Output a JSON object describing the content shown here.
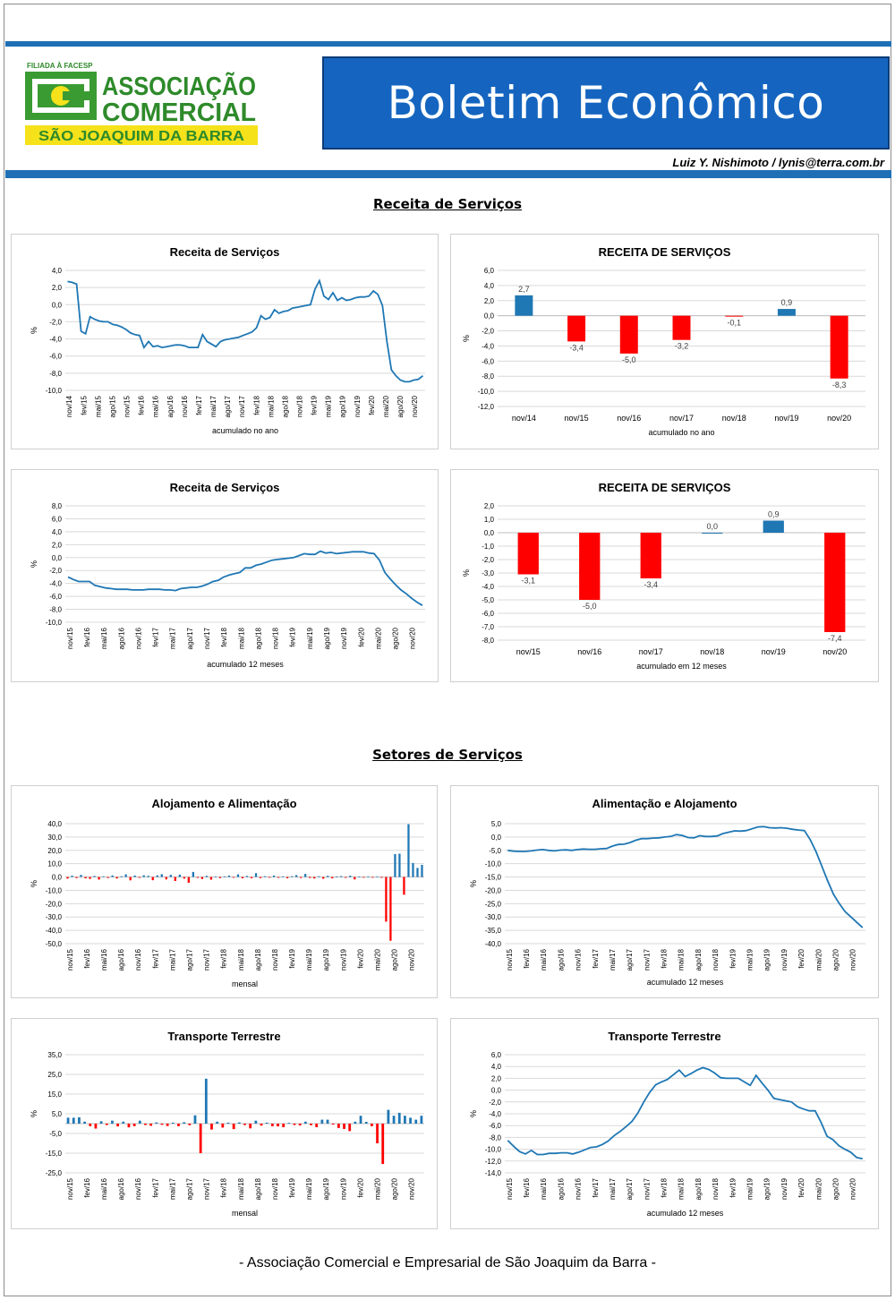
{
  "header": {
    "logo_tag": "FILIADA À FACESP",
    "logo_line1": "ASSOCIAÇÃO",
    "logo_line2": "COMERCIAL",
    "logo_line3": "SÃO JOAQUIM DA BARRA",
    "title": "Boletim Econômico",
    "author": "Luiz Y. Nishimoto / lynis@terra.com.br",
    "colors": {
      "brand_blue": "#1565c0",
      "logo_green": "#3a9b33",
      "logo_yellow": "#f5e21b"
    }
  },
  "sections": {
    "receita": "Receita de Serviços",
    "setores": "Setores de Serviços"
  },
  "footer": "- Associação Comercial e Empresarial de São Joaquim da Barra -",
  "chart_data": [
    {
      "id": "c1",
      "type": "line",
      "title": "Receita de Serviços",
      "xlabel": "acumulado no ano",
      "ylabel": "%",
      "ylim": [
        -10,
        4
      ],
      "yticks": [
        4,
        2,
        0,
        -2,
        -4,
        -6,
        -8,
        -10
      ],
      "x_labels": [
        "nov/14",
        "fev/15",
        "mai/15",
        "ago/15",
        "nov/15",
        "fev/16",
        "mai/16",
        "ago/16",
        "nov/16",
        "fev/17",
        "mai/17",
        "ago/17",
        "nov/17",
        "fev/18",
        "mai/18",
        "ago/18",
        "nov/18",
        "fev/19",
        "mai/19",
        "ago/19",
        "nov/19",
        "fev/20",
        "mai/20",
        "ago/20",
        "nov/20"
      ],
      "line_color": "#1f77b4",
      "values": [
        2.7,
        2.6,
        2.4,
        -3.1,
        -3.4,
        -1.4,
        -1.7,
        -1.9,
        -2.0,
        -2.0,
        -2.3,
        -2.4,
        -2.6,
        -2.9,
        -3.3,
        -3.5,
        -3.6,
        -5.0,
        -4.3,
        -4.9,
        -4.8,
        -5.0,
        -4.9,
        -4.8,
        -4.7,
        -4.7,
        -4.8,
        -5.0,
        -5.0,
        -5.0,
        -3.5,
        -4.3,
        -4.6,
        -4.9,
        -4.3,
        -4.1,
        -4.0,
        -3.9,
        -3.8,
        -3.6,
        -3.4,
        -3.2,
        -2.7,
        -1.3,
        -1.7,
        -1.5,
        -0.6,
        -1.0,
        -0.8,
        -0.7,
        -0.4,
        -0.3,
        -0.2,
        -0.1,
        0.0,
        1.8,
        2.8,
        1.0,
        0.6,
        1.4,
        0.5,
        0.8,
        0.5,
        0.6,
        0.8,
        0.9,
        0.9,
        1.0,
        1.6,
        1.2,
        -0.1,
        -4.3,
        -7.6,
        -8.3,
        -8.8,
        -9.0,
        -9.0,
        -8.8,
        -8.7,
        -8.3
      ]
    },
    {
      "id": "c2",
      "type": "bar",
      "title": "RECEITA DE SERVIÇOS",
      "xlabel": "acumulado no ano",
      "ylabel": "%",
      "ylim": [
        -12,
        6
      ],
      "yticks": [
        6,
        4,
        2,
        0,
        -2,
        -4,
        -6,
        -8,
        -10,
        -12
      ],
      "categories": [
        "nov/14",
        "nov/15",
        "nov/16",
        "nov/17",
        "nov/18",
        "nov/19",
        "nov/20"
      ],
      "values": [
        2.7,
        -3.4,
        -5.0,
        -3.2,
        -0.1,
        0.9,
        -8.3
      ],
      "data_labels": [
        "2,7",
        "-3,4",
        "-5,0",
        "-3,2",
        "-0,1",
        "0,9",
        "-8,3"
      ],
      "pos_color": "#1f77b4",
      "neg_color": "#ff0000"
    },
    {
      "id": "c3",
      "type": "line",
      "title": "Receita de Serviços",
      "xlabel": "acumulado 12 meses",
      "ylabel": "%",
      "ylim": [
        -10,
        8
      ],
      "yticks": [
        8,
        6,
        4,
        2,
        0,
        -2,
        -4,
        -6,
        -8,
        -10
      ],
      "x_labels": [
        "nov/15",
        "fev/16",
        "mai/16",
        "ago/16",
        "nov/16",
        "fev/17",
        "mai/17",
        "ago/17",
        "nov/17",
        "fev/18",
        "mai/18",
        "ago/18",
        "nov/18",
        "fev/19",
        "mai/19",
        "ago/19",
        "nov/19",
        "fev/20",
        "mai/20",
        "ago/20",
        "nov/20"
      ],
      "line_color": "#1f77b4",
      "values": [
        -3.0,
        -3.4,
        -3.7,
        -3.7,
        -3.7,
        -4.3,
        -4.5,
        -4.7,
        -4.8,
        -4.9,
        -4.9,
        -4.9,
        -5.0,
        -5.0,
        -5.0,
        -4.9,
        -4.9,
        -4.9,
        -5.0,
        -5.0,
        -5.1,
        -4.8,
        -4.7,
        -4.6,
        -4.6,
        -4.4,
        -4.1,
        -3.7,
        -3.5,
        -3.0,
        -2.7,
        -2.5,
        -2.3,
        -1.6,
        -1.6,
        -1.2,
        -1.0,
        -0.7,
        -0.4,
        -0.3,
        -0.2,
        -0.1,
        0.0,
        0.3,
        0.6,
        0.5,
        0.5,
        1.0,
        0.7,
        0.8,
        0.6,
        0.7,
        0.8,
        0.9,
        0.9,
        0.9,
        0.7,
        0.6,
        -0.4,
        -2.3,
        -3.3,
        -4.2,
        -5.0,
        -5.6,
        -6.3,
        -6.9,
        -7.4
      ]
    },
    {
      "id": "c4",
      "type": "bar",
      "title": "RECEITA DE SERVIÇOS",
      "xlabel": "acumulado em 12 meses",
      "ylabel": "%",
      "ylim": [
        -8,
        2
      ],
      "yticks": [
        2,
        1,
        0,
        -1,
        -2,
        -3,
        -4,
        -5,
        -6,
        -7,
        -8
      ],
      "categories": [
        "nov/15",
        "nov/16",
        "nov/17",
        "nov/18",
        "nov/19",
        "nov/20"
      ],
      "values": [
        -3.1,
        -5.0,
        -3.4,
        0.0,
        0.9,
        -7.4
      ],
      "data_labels": [
        "-3,1",
        "-5,0",
        "-3,4",
        "0,0",
        "0,9",
        "-7,4"
      ],
      "pos_color": "#1f77b4",
      "neg_color": "#ff0000"
    },
    {
      "id": "c5",
      "type": "bar",
      "title": "Alojamento e Alimentação",
      "xlabel": "mensal",
      "ylabel": "%",
      "ylim": [
        -50,
        40
      ],
      "yticks": [
        40,
        30,
        20,
        10,
        0,
        -10,
        -20,
        -30,
        -40,
        -50
      ],
      "x_labels": [
        "nov/15",
        "fev/16",
        "mai/16",
        "ago/16",
        "nov/16",
        "fev/17",
        "mai/17",
        "ago/17",
        "nov/17",
        "fev/18",
        "mai/18",
        "ago/18",
        "nov/18",
        "fev/19",
        "mai/19",
        "ago/19",
        "nov/19",
        "fev/20",
        "mai/20",
        "ago/20",
        "nov/20"
      ],
      "pos_color": "#1f77b4",
      "neg_color": "#ff0000",
      "values": [
        -1.2,
        1.0,
        -0.8,
        1.6,
        -1.0,
        -1.4,
        0.8,
        -1.9,
        0.5,
        -0.7,
        1.2,
        -1.1,
        0.6,
        2.0,
        -2.5,
        1.1,
        -0.6,
        1.3,
        0.9,
        -2.4,
        1.2,
        2.1,
        -1.8,
        1.6,
        -3.0,
        1.8,
        -1.2,
        -4.3,
        3.8,
        -0.6,
        -1.5,
        0.9,
        -2.0,
        0.4,
        -0.8,
        0.5,
        1.1,
        -0.3,
        2.0,
        -1.0,
        0.8,
        -0.9,
        2.9,
        -0.8,
        0.6,
        -0.4,
        1.1,
        -0.6,
        0.5,
        -0.9,
        0.6,
        1.4,
        -0.7,
        2.3,
        -0.7,
        -1.1,
        0.6,
        -1.3,
        0.9,
        -1.0,
        0.4,
        0.7,
        -0.6,
        1.0,
        -1.8,
        0.3,
        -0.4,
        0.5,
        -0.3,
        0.4,
        -0.6,
        -33.5,
        -47.8,
        17.2,
        17.5,
        -13.3,
        39.6,
        10.5,
        6.8,
        9.1
      ]
    },
    {
      "id": "c6",
      "type": "line",
      "title": "Alimentação e Alojamento",
      "xlabel": "acumulado 12 meses",
      "ylabel": "%",
      "ylim": [
        -40,
        5
      ],
      "yticks": [
        5,
        0,
        -5,
        -10,
        -15,
        -20,
        -25,
        -30,
        -35,
        -40
      ],
      "x_labels": [
        "nov/15",
        "fev/16",
        "mai/16",
        "ago/16",
        "nov/16",
        "fev/17",
        "mai/17",
        "ago/17",
        "nov/17",
        "fev/18",
        "mai/18",
        "ago/18",
        "nov/18",
        "fev/19",
        "mai/19",
        "ago/19",
        "nov/19",
        "fev/20",
        "mai/20",
        "ago/20",
        "nov/20"
      ],
      "line_color": "#1f77b4",
      "values": [
        -5.0,
        -5.3,
        -5.4,
        -5.4,
        -5.2,
        -4.9,
        -4.7,
        -5.0,
        -5.2,
        -4.9,
        -4.8,
        -5.0,
        -4.7,
        -4.5,
        -4.6,
        -4.6,
        -4.4,
        -4.3,
        -3.4,
        -2.8,
        -2.7,
        -2.1,
        -1.2,
        -0.6,
        -0.6,
        -0.4,
        -0.3,
        0.0,
        0.2,
        0.9,
        0.6,
        -0.2,
        -0.3,
        0.5,
        0.2,
        0.2,
        0.4,
        1.3,
        1.8,
        2.3,
        2.2,
        2.4,
        3.1,
        3.8,
        3.9,
        3.5,
        3.4,
        3.5,
        3.3,
        2.9,
        2.6,
        2.4,
        -1.0,
        -5.5,
        -11.0,
        -16.5,
        -21.5,
        -25.0,
        -28.0,
        -30.0,
        -32.0,
        -34.0
      ]
    },
    {
      "id": "c7",
      "type": "bar",
      "title": "Transporte Terrestre",
      "xlabel": "mensal",
      "ylabel": "%",
      "ylim": [
        -25,
        35
      ],
      "yticks": [
        35,
        25,
        15,
        5,
        -5,
        -15,
        -25
      ],
      "tick_labels": [
        "35,0",
        "25,0",
        "15,0",
        "5,0",
        "-5,0",
        "-15,0",
        "-25,0"
      ],
      "x_labels": [
        "nov/15",
        "fev/16",
        "mai/16",
        "ago/16",
        "nov/16",
        "fev/17",
        "mai/17",
        "ago/17",
        "nov/17",
        "fev/18",
        "mai/18",
        "ago/18",
        "nov/18",
        "fev/19",
        "mai/19",
        "ago/19",
        "nov/19",
        "fev/20",
        "mai/20",
        "ago/20",
        "nov/20"
      ],
      "pos_color": "#1f77b4",
      "neg_color": "#ff0000",
      "values": [
        3.0,
        3.0,
        3.2,
        1.0,
        -1.3,
        -2.5,
        1.2,
        -0.7,
        1.5,
        -1.4,
        1.0,
        -1.9,
        -1.3,
        1.5,
        -0.7,
        -1.1,
        0.6,
        -0.6,
        -1.2,
        0.5,
        -1.3,
        0.7,
        -0.8,
        4.2,
        -15.0,
        22.8,
        -3.0,
        1.0,
        -2.0,
        0.5,
        -2.8,
        0.6,
        -0.7,
        -2.4,
        1.5,
        -1.0,
        0.5,
        -1.3,
        -1.4,
        -1.8,
        0.4,
        -0.7,
        -0.9,
        1.0,
        -0.8,
        -1.8,
        2.0,
        2.0,
        -0.5,
        -2.2,
        -2.7,
        -3.8,
        1.0,
        4.0,
        0.9,
        -1.3,
        -10.0,
        -20.5,
        7.0,
        4.0,
        5.5,
        4.0,
        3.0,
        2.0,
        4.0
      ]
    },
    {
      "id": "c8",
      "type": "line",
      "title": "Transporte Terrestre",
      "xlabel": "acumulado 12 meses",
      "ylabel": "%",
      "ylim": [
        -14,
        6
      ],
      "yticks": [
        6,
        4,
        2,
        0,
        -2,
        -4,
        -6,
        -8,
        -10,
        -12,
        -14
      ],
      "x_labels": [
        "nov/15",
        "fev/16",
        "mai/16",
        "ago/16",
        "nov/16",
        "fev/17",
        "mai/17",
        "ago/17",
        "nov/17",
        "fev/18",
        "mai/18",
        "ago/18",
        "nov/18",
        "fev/19",
        "mai/19",
        "ago/19",
        "nov/19",
        "fev/20",
        "mai/20",
        "ago/20",
        "nov/20"
      ],
      "line_color": "#1f77b4",
      "values": [
        -8.5,
        -9.5,
        -10.4,
        -10.8,
        -10.2,
        -10.9,
        -10.9,
        -10.7,
        -10.7,
        -10.6,
        -10.6,
        -10.8,
        -10.5,
        -10.1,
        -9.7,
        -9.6,
        -9.2,
        -8.6,
        -7.7,
        -7.0,
        -6.2,
        -5.3,
        -3.9,
        -2.0,
        -0.4,
        0.9,
        1.4,
        1.8,
        2.6,
        3.4,
        2.3,
        2.8,
        3.4,
        3.8,
        3.5,
        2.9,
        2.1,
        2.0,
        2.0,
        2.0,
        1.4,
        0.8,
        2.5,
        1.2,
        0.0,
        -1.4,
        -1.6,
        -1.8,
        -2.0,
        -2.8,
        -3.2,
        -3.5,
        -3.5,
        -5.5,
        -7.8,
        -8.4,
        -9.4,
        -10.0,
        -10.5,
        -11.4,
        -11.6
      ]
    }
  ]
}
